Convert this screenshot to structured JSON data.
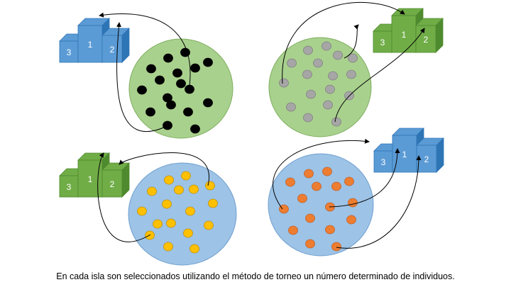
{
  "caption": "En cada isla son seleccionados utilizando el método de torneo un número determinado de individuos.",
  "islands": [
    {
      "id": "island-top-left",
      "circle_color": "#a9d18e",
      "circle_stroke": "#7fae5f",
      "dot_color": "#000000",
      "dot_stroke": "#000000",
      "podium_color": "#5b9bd5",
      "podium_dark": "#2e75b6",
      "podium_labels": [
        "3",
        "1",
        "2"
      ]
    },
    {
      "id": "island-top-right",
      "circle_color": "#a9d18e",
      "circle_stroke": "#7fae5f",
      "dot_color": "#a6a6a6",
      "dot_stroke": "#7f7f7f",
      "podium_color": "#70ad47",
      "podium_dark": "#4e8a2e",
      "podium_labels": [
        "3",
        "1",
        "2"
      ]
    },
    {
      "id": "island-bottom-left",
      "circle_color": "#9dc3e6",
      "circle_stroke": "#6f9fcf",
      "dot_color": "#ffc000",
      "dot_stroke": "#c09000",
      "podium_color": "#70ad47",
      "podium_dark": "#4e8a2e",
      "podium_labels": [
        "3",
        "1",
        "2"
      ]
    },
    {
      "id": "island-bottom-right",
      "circle_color": "#9dc3e6",
      "circle_stroke": "#6f9fcf",
      "dot_color": "#ed7d31",
      "dot_stroke": "#c0602a",
      "podium_color": "#5b9bd5",
      "podium_dark": "#2e75b6",
      "podium_labels": [
        "3",
        "1",
        "2"
      ]
    }
  ]
}
